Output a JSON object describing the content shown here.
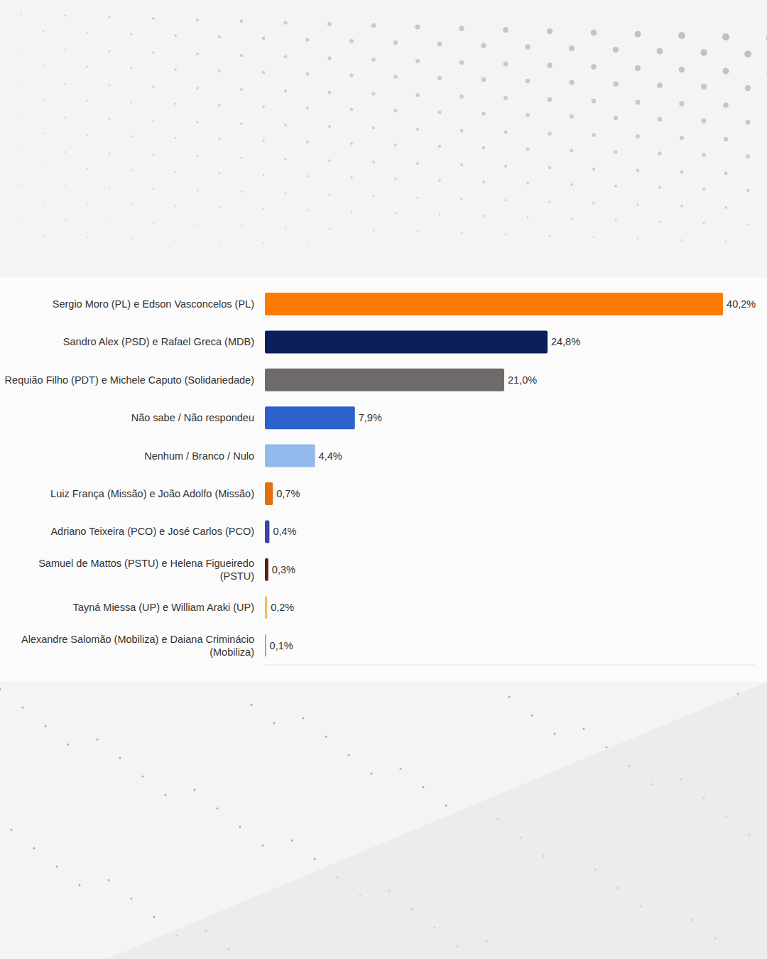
{
  "chart_data": {
    "type": "bar",
    "orientation": "horizontal",
    "categories": [
      "Sergio Moro (PL) e Edson Vasconcelos (PL)",
      "Sandro Alex (PSD) e Rafael Greca (MDB)",
      "Requião Filho (PDT) e Michele Caputo (Solidariedade)",
      "Não sabe / Não respondeu",
      "Nenhum / Branco / Nulo",
      "Luiz França (Missão) e João Adolfo (Missão)",
      "Adriano Teixeira (PCO) e José Carlos (PCO)",
      "Samuel de Mattos (PSTU) e Helena Figueiredo (PSTU)",
      "Tayná Miessa (UP) e William Araki (UP)",
      "Alexandre Salomão (Mobiliza) e Daiana Criminácio (Mobiliza)"
    ],
    "values": [
      40.2,
      24.8,
      21.0,
      7.9,
      4.4,
      0.7,
      0.4,
      0.3,
      0.2,
      0.1
    ],
    "value_labels": [
      "40,2%",
      "24,8%",
      "21,0%",
      "7,9%",
      "4,4%",
      "0,7%",
      "0,4%",
      "0,3%",
      "0,2%",
      "0,1%"
    ],
    "colors": [
      "#ff7a00",
      "#0b1f5c",
      "#6e6b6a",
      "#2b62cc",
      "#92b9ec",
      "#e2700f",
      "#3b46a8",
      "#5a1f0a",
      "#f2bc5a",
      "#8d8fc8"
    ],
    "xlim": [
      0,
      43
    ],
    "xticks": [],
    "data_labels": true,
    "tick_labels": "y",
    "grid": false
  }
}
